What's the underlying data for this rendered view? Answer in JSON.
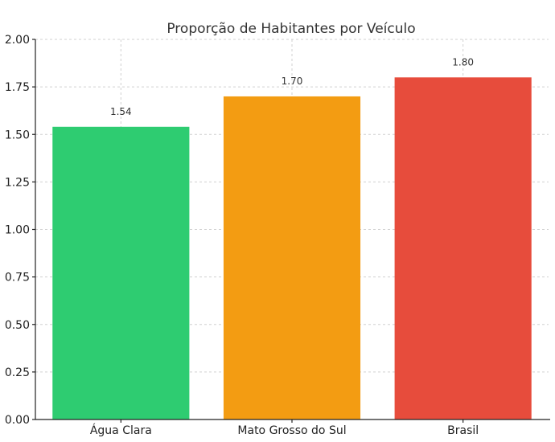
{
  "chart_data": {
    "type": "bar",
    "title": "Proporção de Habitantes por Veículo",
    "xlabel": "",
    "ylabel": "",
    "categories": [
      "Água Clara",
      "Mato Grosso do Sul",
      "Brasil"
    ],
    "values": [
      1.54,
      1.7,
      1.8
    ],
    "value_labels": [
      "1.54",
      "1.70",
      "1.80"
    ],
    "colors": [
      "#2ecc71",
      "#f39c12",
      "#e74c3c"
    ],
    "ylim": [
      0,
      2.0
    ],
    "yticks": [
      0.0,
      0.25,
      0.5,
      0.75,
      1.0,
      1.25,
      1.5,
      1.75,
      2.0
    ],
    "ytick_labels": [
      "0.00",
      "0.25",
      "0.50",
      "0.75",
      "1.00",
      "1.25",
      "1.50",
      "1.75",
      "2.00"
    ],
    "grid": true,
    "legend": "none"
  }
}
